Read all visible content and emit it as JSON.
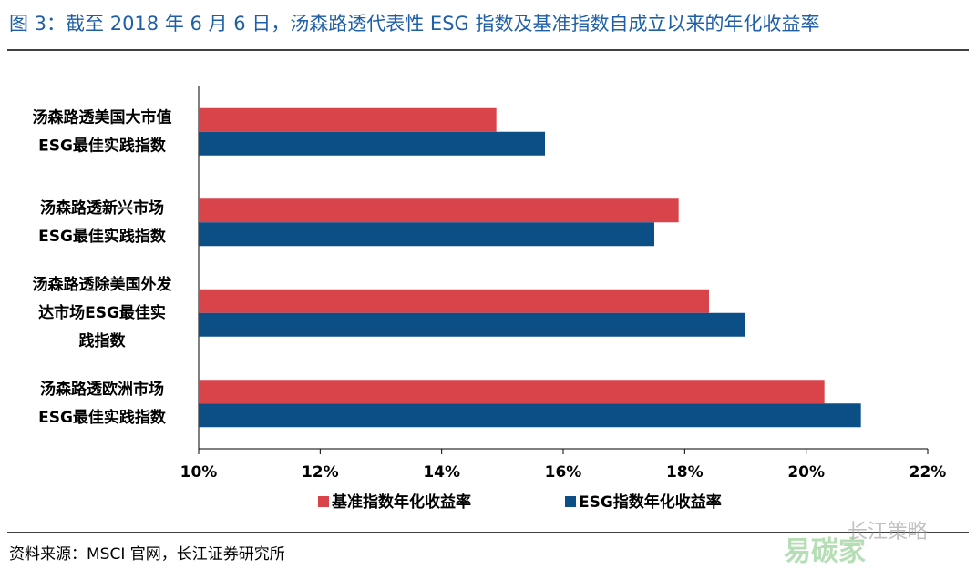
{
  "chart_data": {
    "type": "barh",
    "title": "图 3：截至 2018 年 6 月 6 日，汤森路透代表性 ESG 指数及基准指数自成立以来的年化收益率",
    "categories": [
      "汤森路透美国大市值\nESG最佳实践指数",
      "汤森路透新兴市场\nESG最佳实践指数",
      "汤森路透除美国外发\n达市场ESG最佳实\n践指数",
      "汤森路透欧洲市场\nESG最佳实践指数"
    ],
    "series": [
      {
        "name": "基准指数年化收益率",
        "color": "#d9434a",
        "values": [
          14.9,
          17.9,
          18.4,
          20.3
        ]
      },
      {
        "name": "ESG指数年化收益率",
        "color": "#0b4f86",
        "values": [
          15.7,
          17.5,
          19.0,
          20.9
        ]
      }
    ],
    "xlim": [
      10,
      22
    ],
    "xticks": [
      {
        "value": 10,
        "label": "10%"
      },
      {
        "value": 12,
        "label": "12%"
      },
      {
        "value": 14,
        "label": "14%"
      },
      {
        "value": 16,
        "label": "16%"
      },
      {
        "value": 18,
        "label": "18%"
      },
      {
        "value": 20,
        "label": "20%"
      },
      {
        "value": 22,
        "label": "22%"
      }
    ],
    "legend": "bottom",
    "source": "资料来源：MSCI 官网，长江证券研究所",
    "watermark": [
      "长江策略",
      "易碳家"
    ]
  }
}
